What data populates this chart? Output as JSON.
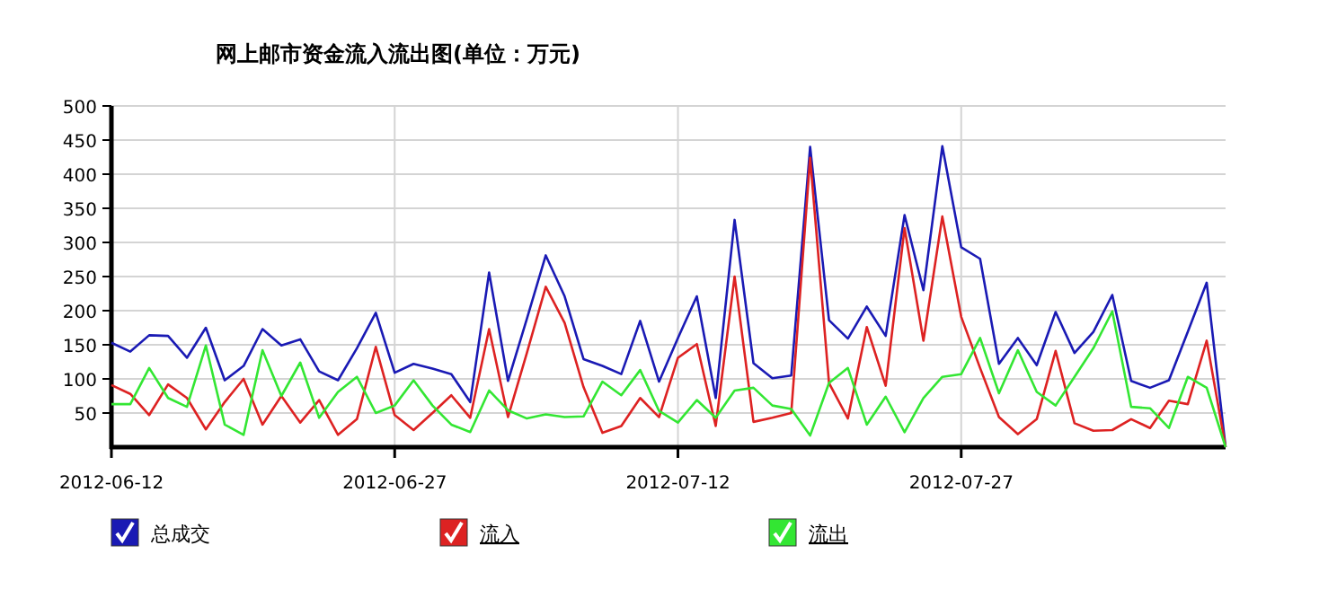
{
  "chart_data": {
    "type": "line",
    "title": "网上邮市资金流入流出图(单位：万元)",
    "x": [
      "2012-06-12",
      "2012-06-13",
      "2012-06-14",
      "2012-06-15",
      "2012-06-16",
      "2012-06-17",
      "2012-06-18",
      "2012-06-19",
      "2012-06-20",
      "2012-06-21",
      "2012-06-22",
      "2012-06-23",
      "2012-06-24",
      "2012-06-25",
      "2012-06-26",
      "2012-06-27",
      "2012-06-28",
      "2012-06-29",
      "2012-06-30",
      "2012-07-01",
      "2012-07-02",
      "2012-07-03",
      "2012-07-04",
      "2012-07-05",
      "2012-07-06",
      "2012-07-07",
      "2012-07-08",
      "2012-07-09",
      "2012-07-10",
      "2012-07-11",
      "2012-07-12",
      "2012-07-13",
      "2012-07-14",
      "2012-07-15",
      "2012-07-16",
      "2012-07-17",
      "2012-07-18",
      "2012-07-19",
      "2012-07-20",
      "2012-07-21",
      "2012-07-22",
      "2012-07-23",
      "2012-07-24",
      "2012-07-25",
      "2012-07-26",
      "2012-07-27",
      "2012-07-28",
      "2012-07-29",
      "2012-07-30",
      "2012-07-31",
      "2012-08-01",
      "2012-08-02",
      "2012-08-03",
      "2012-08-04",
      "2012-08-05",
      "2012-08-06",
      "2012-08-07",
      "2012-08-08",
      "2012-08-09",
      "2012-08-10"
    ],
    "series": [
      {
        "name": "总成交",
        "color": "#1a1ab4",
        "values": [
          153,
          140,
          164,
          163,
          131,
          175,
          98,
          119,
          173,
          149,
          158,
          111,
          98,
          145,
          197,
          109,
          122,
          115,
          107,
          66,
          256,
          97,
          188,
          281,
          221,
          129,
          119,
          107,
          185,
          96,
          160,
          221,
          72,
          333,
          123,
          101,
          105,
          440,
          186,
          159,
          206,
          163,
          340,
          230,
          441,
          293,
          276,
          122,
          160,
          120,
          198,
          138,
          169,
          223,
          97,
          87,
          98,
          169,
          241,
          0
        ]
      },
      {
        "name": "流入",
        "color": "#dd2222",
        "values": [
          91,
          78,
          47,
          92,
          72,
          26,
          66,
          100,
          33,
          75,
          36,
          69,
          18,
          41,
          147,
          47,
          25,
          50,
          76,
          43,
          173,
          44,
          138,
          235,
          182,
          88,
          21,
          31,
          72,
          44,
          131,
          151,
          31,
          250,
          37,
          43,
          50,
          424,
          94,
          42,
          176,
          90,
          321,
          156,
          338,
          191,
          116,
          44,
          19,
          41,
          141,
          35,
          24,
          25,
          41,
          28,
          68,
          63,
          156,
          0
        ]
      },
      {
        "name": "流出",
        "color": "#33e633",
        "values": [
          63,
          63,
          116,
          72,
          59,
          149,
          33,
          18,
          142,
          75,
          124,
          43,
          81,
          103,
          50,
          61,
          98,
          61,
          33,
          22,
          83,
          54,
          42,
          48,
          44,
          45,
          96,
          76,
          113,
          53,
          36,
          69,
          43,
          83,
          87,
          61,
          56,
          17,
          94,
          116,
          33,
          74,
          22,
          72,
          103,
          107,
          160,
          79,
          142,
          81,
          61,
          103,
          145,
          199,
          59,
          57,
          28,
          103,
          87,
          0
        ]
      }
    ],
    "xlim": [
      "2012-06-12",
      "2012-08-10"
    ],
    "xticks": [
      "2012-06-12",
      "2012-06-27",
      "2012-07-12",
      "2012-07-27"
    ],
    "ylim": [
      0,
      500
    ],
    "yticks": [
      50,
      100,
      150,
      200,
      250,
      300,
      350,
      400,
      450,
      500
    ],
    "grid": true,
    "legend": "bottom",
    "marker": "none",
    "line_style": "solid"
  }
}
